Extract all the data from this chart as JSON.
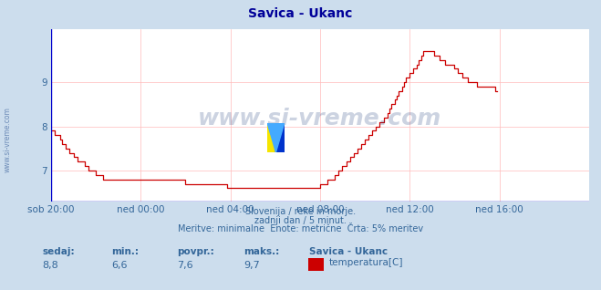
{
  "title": "Savica - Ukanc",
  "bg_color": "#ccdded",
  "plot_bg_color": "#ffffff",
  "line_color": "#cc0000",
  "grid_color": "#ffbbbb",
  "axis_color": "#0000cc",
  "text_color": "#336699",
  "title_color": "#000099",
  "xlabel_labels": [
    "sob 20:00",
    "ned 00:00",
    "ned 04:00",
    "ned 08:00",
    "ned 12:00",
    "ned 16:00"
  ],
  "yticks": [
    7,
    8,
    9
  ],
  "ylim": [
    6.3,
    10.2
  ],
  "xlim": [
    0,
    288
  ],
  "subtitle_lines": [
    "Slovenija / reke in morje.",
    "zadnji dan / 5 minut.",
    "Meritve: minimalne  Enote: metrične  Črta: 5% meritev"
  ],
  "footer_labels": [
    "sedaj:",
    "min.:",
    "povpr.:",
    "maks.:"
  ],
  "footer_values": [
    "8,8",
    "6,6",
    "7,6",
    "9,7"
  ],
  "legend_name": "Savica - Ukanc",
  "legend_var": "temperatura[C]",
  "legend_color": "#cc0000",
  "watermark": "www.si-vreme.com",
  "temperature_data": [
    7.9,
    7.9,
    7.8,
    7.8,
    7.8,
    7.7,
    7.6,
    7.6,
    7.5,
    7.5,
    7.4,
    7.4,
    7.3,
    7.3,
    7.2,
    7.2,
    7.2,
    7.2,
    7.1,
    7.1,
    7.0,
    7.0,
    7.0,
    7.0,
    6.9,
    6.9,
    6.9,
    6.9,
    6.8,
    6.8,
    6.8,
    6.8,
    6.8,
    6.8,
    6.8,
    6.8,
    6.8,
    6.8,
    6.8,
    6.8,
    6.8,
    6.8,
    6.8,
    6.8,
    6.8,
    6.8,
    6.8,
    6.8,
    6.8,
    6.8,
    6.8,
    6.8,
    6.8,
    6.8,
    6.8,
    6.8,
    6.8,
    6.8,
    6.8,
    6.8,
    6.8,
    6.8,
    6.8,
    6.8,
    6.8,
    6.8,
    6.8,
    6.8,
    6.8,
    6.8,
    6.8,
    6.8,
    6.7,
    6.7,
    6.7,
    6.7,
    6.7,
    6.7,
    6.7,
    6.7,
    6.7,
    6.7,
    6.7,
    6.7,
    6.7,
    6.7,
    6.7,
    6.7,
    6.7,
    6.7,
    6.7,
    6.7,
    6.7,
    6.7,
    6.6,
    6.6,
    6.6,
    6.6,
    6.6,
    6.6,
    6.6,
    6.6,
    6.6,
    6.6,
    6.6,
    6.6,
    6.6,
    6.6,
    6.6,
    6.6,
    6.6,
    6.6,
    6.6,
    6.6,
    6.6,
    6.6,
    6.6,
    6.6,
    6.6,
    6.6,
    6.6,
    6.6,
    6.6,
    6.6,
    6.6,
    6.6,
    6.6,
    6.6,
    6.6,
    6.6,
    6.6,
    6.6,
    6.6,
    6.6,
    6.6,
    6.6,
    6.6,
    6.6,
    6.6,
    6.6,
    6.6,
    6.6,
    6.6,
    6.6,
    6.7,
    6.7,
    6.7,
    6.7,
    6.8,
    6.8,
    6.8,
    6.8,
    6.9,
    6.9,
    7.0,
    7.0,
    7.1,
    7.1,
    7.2,
    7.2,
    7.3,
    7.3,
    7.4,
    7.4,
    7.5,
    7.5,
    7.6,
    7.6,
    7.7,
    7.7,
    7.8,
    7.8,
    7.9,
    7.9,
    8.0,
    8.0,
    8.1,
    8.1,
    8.2,
    8.2,
    8.3,
    8.4,
    8.5,
    8.5,
    8.6,
    8.7,
    8.8,
    8.8,
    8.9,
    9.0,
    9.1,
    9.1,
    9.2,
    9.2,
    9.3,
    9.3,
    9.4,
    9.5,
    9.6,
    9.7,
    9.7,
    9.7,
    9.7,
    9.7,
    9.7,
    9.6,
    9.6,
    9.6,
    9.5,
    9.5,
    9.5,
    9.4,
    9.4,
    9.4,
    9.4,
    9.4,
    9.3,
    9.3,
    9.2,
    9.2,
    9.1,
    9.1,
    9.1,
    9.0,
    9.0,
    9.0,
    9.0,
    9.0,
    8.9,
    8.9,
    8.9,
    8.9,
    8.9,
    8.9,
    8.9,
    8.9,
    8.9,
    8.9,
    8.8,
    8.8
  ]
}
